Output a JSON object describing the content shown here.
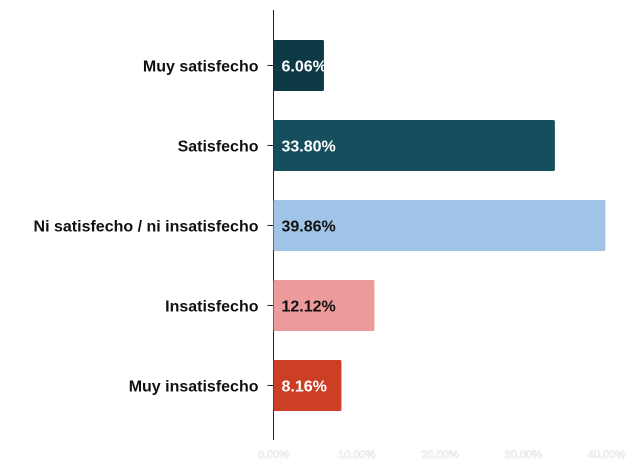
{
  "chart_data": {
    "type": "bar",
    "orientation": "horizontal",
    "title": "",
    "xlabel": "",
    "ylabel": "",
    "categories": [
      "Muy satisfecho",
      "Satisfecho",
      "Ni satisfecho / ni insatisfecho",
      "Insatisfecho",
      "Muy insatisfecho"
    ],
    "values": [
      6.06,
      33.8,
      39.86,
      12.12,
      8.16
    ],
    "value_labels": [
      "6.06%",
      "33.80%",
      "39.86%",
      "12.12%",
      "8.16%"
    ],
    "bar_colors": [
      "#0d3a45",
      "#154f5e",
      "#a0c4e8",
      "#ec9a9a",
      "#cc3f24"
    ],
    "value_label_colors": [
      "#ffffff",
      "#ffffff",
      "#111111",
      "#111111",
      "#ffffff"
    ],
    "xlim": [
      0,
      40
    ],
    "xticks": [
      0,
      10,
      20,
      30,
      40
    ],
    "xtick_labels": [
      "0.00%",
      "10.00%",
      "20.00%",
      "30.00%",
      "40.00%"
    ],
    "grid": false,
    "legend": "none"
  }
}
